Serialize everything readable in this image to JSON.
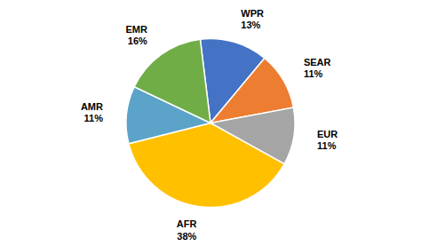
{
  "chart_data": {
    "type": "pie",
    "categories": [
      "WPR",
      "SEAR",
      "EUR",
      "AFR",
      "AMR",
      "EMR"
    ],
    "values": [
      13,
      11,
      11,
      38,
      11,
      16
    ],
    "value_labels": [
      "13%",
      "11%",
      "11%",
      "38%",
      "11%",
      "16%"
    ],
    "colors": [
      "#4472C4",
      "#ED7D31",
      "#A5A5A5",
      "#FFC000",
      "#5BA3C9",
      "#70AD47"
    ],
    "data_labels": true
  }
}
